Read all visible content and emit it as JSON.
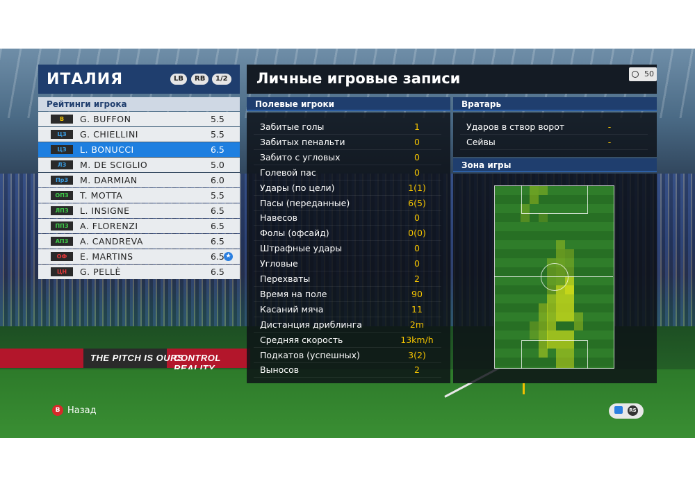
{
  "team": {
    "name": "ИТАЛИЯ",
    "lb": "LB",
    "rb": "RB",
    "page": "1/2"
  },
  "ratings_header": "Рейтинги игрока",
  "players": [
    {
      "pos": "В",
      "pos_color": "#f5c400",
      "name": "G. BUFFON",
      "rating": "5.5"
    },
    {
      "pos": "ЦЗ",
      "pos_color": "#3aa0e8",
      "name": "G. CHIELLINI",
      "rating": "5.5"
    },
    {
      "pos": "ЦЗ",
      "pos_color": "#3aa0e8",
      "name": "L. BONUCCI",
      "rating": "6.5"
    },
    {
      "pos": "ЛЗ",
      "pos_color": "#3aa0e8",
      "name": "M. DE SCIGLIO",
      "rating": "5.0"
    },
    {
      "pos": "ПрЗ",
      "pos_color": "#3aa0e8",
      "name": "M. DARMIAN",
      "rating": "6.0"
    },
    {
      "pos": "ОПЗ",
      "pos_color": "#3fcf4a",
      "name": "T. MOTTA",
      "rating": "5.5"
    },
    {
      "pos": "ЛПЗ",
      "pos_color": "#3fcf4a",
      "name": "L. INSIGNE",
      "rating": "6.5"
    },
    {
      "pos": "ППЗ",
      "pos_color": "#3fcf4a",
      "name": "A. FLORENZI",
      "rating": "6.5"
    },
    {
      "pos": "АПЗ",
      "pos_color": "#3fcf4a",
      "name": "A. CANDREVA",
      "rating": "6.5"
    },
    {
      "pos": "ОФ",
      "pos_color": "#e83a3a",
      "name": "E. MARTINS",
      "rating": "6.5",
      "star": "★"
    },
    {
      "pos": "ЦН",
      "pos_color": "#e83a3a",
      "name": "G. PELLÈ",
      "rating": "6.5"
    }
  ],
  "title": "Личные игровые записи",
  "timer": "50",
  "field_players": {
    "header": "Полевые игроки",
    "stats": [
      {
        "label": "Забитые голы",
        "value": "1"
      },
      {
        "label": "Забитых пенальти",
        "value": "0"
      },
      {
        "label": "Забито с угловых",
        "value": "0"
      },
      {
        "label": "Голевой пас",
        "value": "0"
      },
      {
        "label": "Удары (по цели)",
        "value": "1(1)"
      },
      {
        "label": "Пасы (переданные)",
        "value": "6(5)"
      },
      {
        "label": "Навесов",
        "value": "0"
      },
      {
        "label": "Фолы (офсайд)",
        "value": "0(0)"
      },
      {
        "label": "Штрафные удары",
        "value": "0"
      },
      {
        "label": "Угловые",
        "value": "0"
      },
      {
        "label": "Перехваты",
        "value": "2"
      },
      {
        "label": "Время на поле",
        "value": "90"
      },
      {
        "label": "Касаний мяча",
        "value": "11"
      },
      {
        "label": "Дистанция дриблинга",
        "value": "2m"
      },
      {
        "label": "Средняя скорость",
        "value": "13km/h"
      },
      {
        "label": "Подкатов (успешных)",
        "value": "3(2)"
      },
      {
        "label": "Выносов",
        "value": "2"
      }
    ]
  },
  "goalkeeper": {
    "header": "Вратарь",
    "stats": [
      {
        "label": "Ударов в створ ворот",
        "value": "-"
      },
      {
        "label": "Сейвы",
        "value": "-"
      }
    ]
  },
  "zone_header": "Зона игры",
  "boards": [
    "THE PITCH IS OURS",
    "CONTROL REALITY"
  ],
  "footer": {
    "back_button": "B",
    "back_label": "Назад",
    "rs_label": "RS"
  },
  "colors": {
    "accent": "#1f3e6e",
    "selected_row": "#1e7fe0",
    "stat_value": "#f5c400",
    "heat": "#d6e21a"
  }
}
